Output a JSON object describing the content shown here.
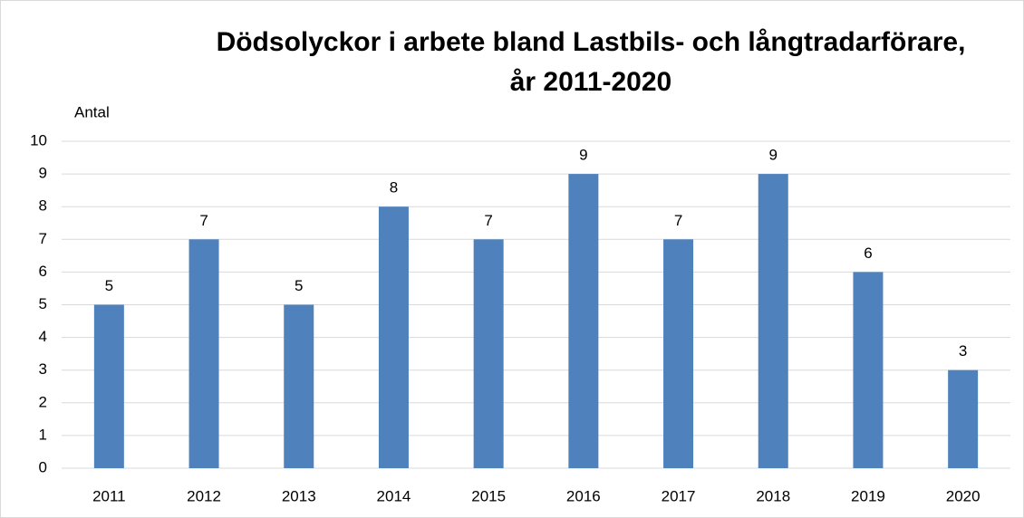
{
  "chart_data": {
    "type": "bar",
    "title": [
      "Dödsolyckor i arbete bland Lastbils- och långtradarförare,",
      "år 2011-2020"
    ],
    "y_label": "Antal",
    "categories": [
      "2011",
      "2012",
      "2013",
      "2014",
      "2015",
      "2016",
      "2017",
      "2018",
      "2019",
      "2020"
    ],
    "values": [
      5,
      7,
      5,
      8,
      7,
      9,
      7,
      9,
      6,
      3
    ],
    "color": "#4f81bd",
    "ylim": [
      0,
      10
    ],
    "yticks": [
      0,
      1,
      2,
      3,
      4,
      5,
      6,
      7,
      8,
      9,
      10
    ],
    "grid": true
  }
}
